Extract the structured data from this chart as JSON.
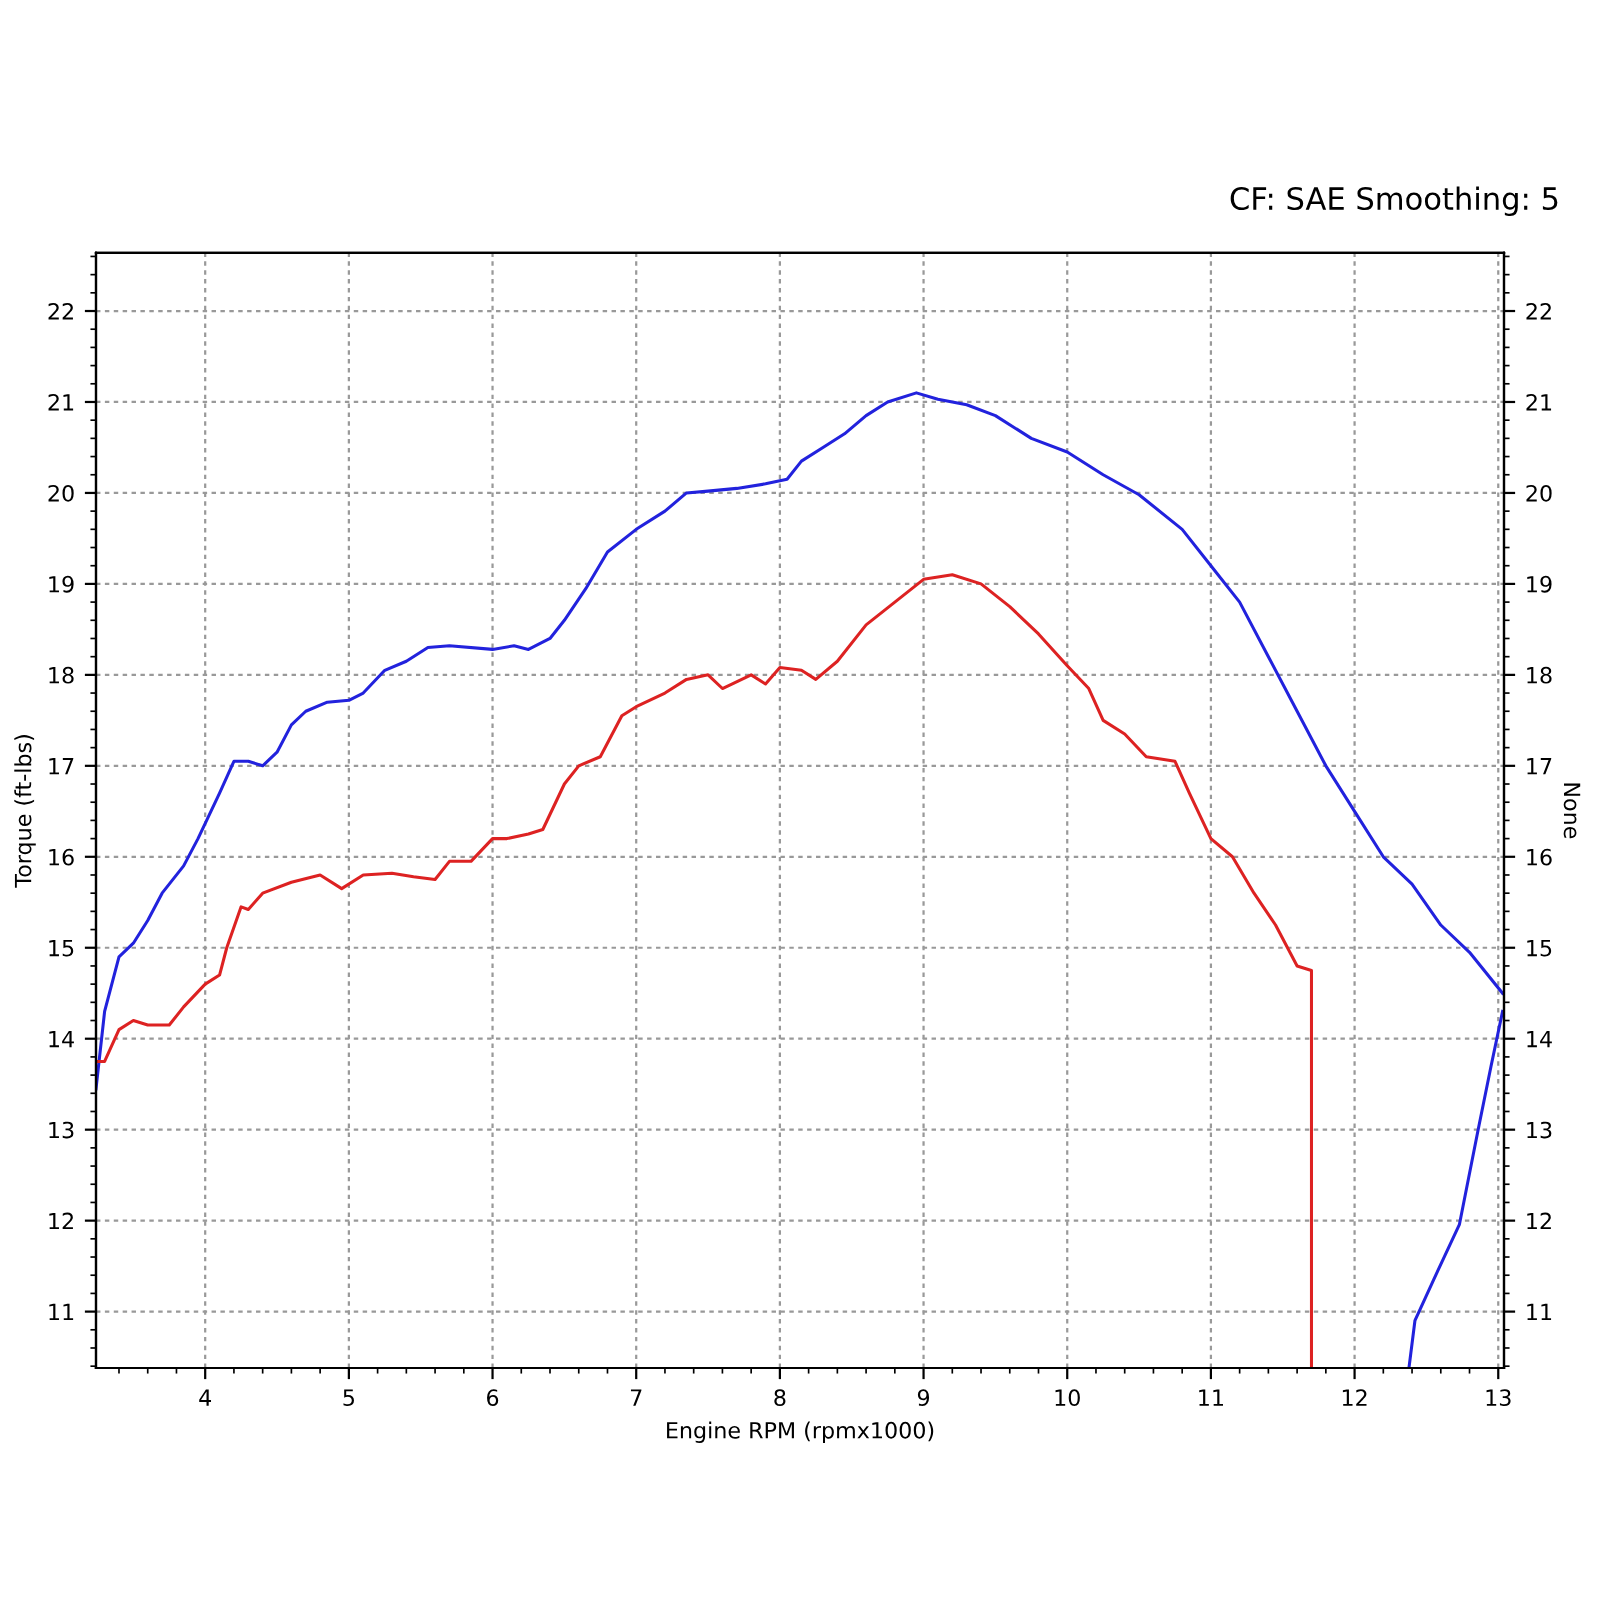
{
  "chart_data": {
    "type": "line",
    "xlabel": "Engine RPM (rpmx1000)",
    "ylabel": "Torque (ft-lbs)",
    "y2label": "None",
    "annotations": [
      "CF: SAE Smoothing: 5"
    ],
    "xlim": [
      3.24,
      13.04
    ],
    "xticks": [
      4,
      5,
      6,
      7,
      8,
      9,
      10,
      11,
      12,
      13
    ],
    "ylim": [
      10.38,
      22.64
    ],
    "yticks": [
      11,
      12,
      13,
      14,
      15,
      16,
      17,
      18,
      19,
      20,
      21,
      22
    ],
    "y2lim": [
      10.38,
      22.64
    ],
    "y2ticks": [
      11,
      12,
      13,
      14,
      15,
      16,
      17,
      18,
      19,
      20,
      21,
      22
    ],
    "grid": true,
    "line_style": "solid",
    "marker": "none",
    "series": [
      {
        "color": "#2222dd",
        "x": [
          3.24,
          3.3,
          3.4,
          3.5,
          3.6,
          3.7,
          3.85,
          3.95,
          4.1,
          4.2,
          4.3,
          4.4,
          4.5,
          4.6,
          4.7,
          4.85,
          5.0,
          5.1,
          5.25,
          5.4,
          5.55,
          5.7,
          6.0,
          6.15,
          6.25,
          6.4,
          6.5,
          6.65,
          6.8,
          7.0,
          7.2,
          7.35,
          7.5,
          7.7,
          7.9,
          8.05,
          8.15,
          8.3,
          8.45,
          8.6,
          8.75,
          8.95,
          9.1,
          9.3,
          9.5,
          9.75,
          10.0,
          10.25,
          10.5,
          10.8,
          11.0,
          11.2,
          11.4,
          11.6,
          11.8,
          12.0,
          12.2,
          12.4,
          12.6,
          12.8,
          13.03
        ],
        "values": [
          13.45,
          14.3,
          14.9,
          15.05,
          15.3,
          15.6,
          15.9,
          16.2,
          16.7,
          17.05,
          17.05,
          17.0,
          17.15,
          17.45,
          17.6,
          17.7,
          17.72,
          17.8,
          18.05,
          18.15,
          18.3,
          18.32,
          18.28,
          18.32,
          18.28,
          18.4,
          18.6,
          18.95,
          19.35,
          19.6,
          19.8,
          20.0,
          20.02,
          20.05,
          20.1,
          20.15,
          20.35,
          20.5,
          20.65,
          20.85,
          21.0,
          21.1,
          21.03,
          20.97,
          20.85,
          20.6,
          20.45,
          20.2,
          19.98,
          19.6,
          19.2,
          18.8,
          18.2,
          17.6,
          17.0,
          16.5,
          16.0,
          15.7,
          15.25,
          14.95,
          14.5
        ]
      },
      {
        "color": "#2222dd",
        "x": [
          12.38,
          12.42,
          12.55,
          12.73,
          12.86,
          12.95,
          13.03
        ],
        "values": [
          10.4,
          10.9,
          11.35,
          11.96,
          13.0,
          13.7,
          14.3
        ]
      },
      {
        "color": "#dd2222",
        "x": [
          3.24,
          3.3,
          3.4,
          3.5,
          3.6,
          3.75,
          3.85,
          4.0,
          4.1,
          4.15,
          4.25,
          4.3,
          4.4,
          4.6,
          4.8,
          4.95,
          5.1,
          5.3,
          5.45,
          5.6,
          5.7,
          5.85,
          6.0,
          6.1,
          6.25,
          6.35,
          6.5,
          6.6,
          6.75,
          6.9,
          7.0,
          7.2,
          7.35,
          7.5,
          7.6,
          7.8,
          7.9,
          8.0,
          8.15,
          8.25,
          8.4,
          8.6,
          8.8,
          9.0,
          9.2,
          9.4,
          9.6,
          9.8,
          10.0,
          10.15,
          10.25,
          10.4,
          10.55,
          10.75,
          10.85,
          11.0,
          11.15,
          11.3,
          11.45,
          11.6,
          11.7,
          11.7
        ],
        "values": [
          13.75,
          13.75,
          14.1,
          14.2,
          14.15,
          14.15,
          14.35,
          14.6,
          14.7,
          15.0,
          15.45,
          15.42,
          15.6,
          15.72,
          15.8,
          15.65,
          15.8,
          15.82,
          15.78,
          15.75,
          15.95,
          15.95,
          16.2,
          16.2,
          16.25,
          16.3,
          16.8,
          17.0,
          17.1,
          17.55,
          17.65,
          17.8,
          17.95,
          18.0,
          17.85,
          18.0,
          17.9,
          18.08,
          18.05,
          17.95,
          18.15,
          18.55,
          18.8,
          19.05,
          19.1,
          19.0,
          18.75,
          18.45,
          18.1,
          17.85,
          17.5,
          17.35,
          17.1,
          17.05,
          16.7,
          16.2,
          16.0,
          15.6,
          15.25,
          14.8,
          14.75,
          10.4
        ]
      }
    ]
  }
}
